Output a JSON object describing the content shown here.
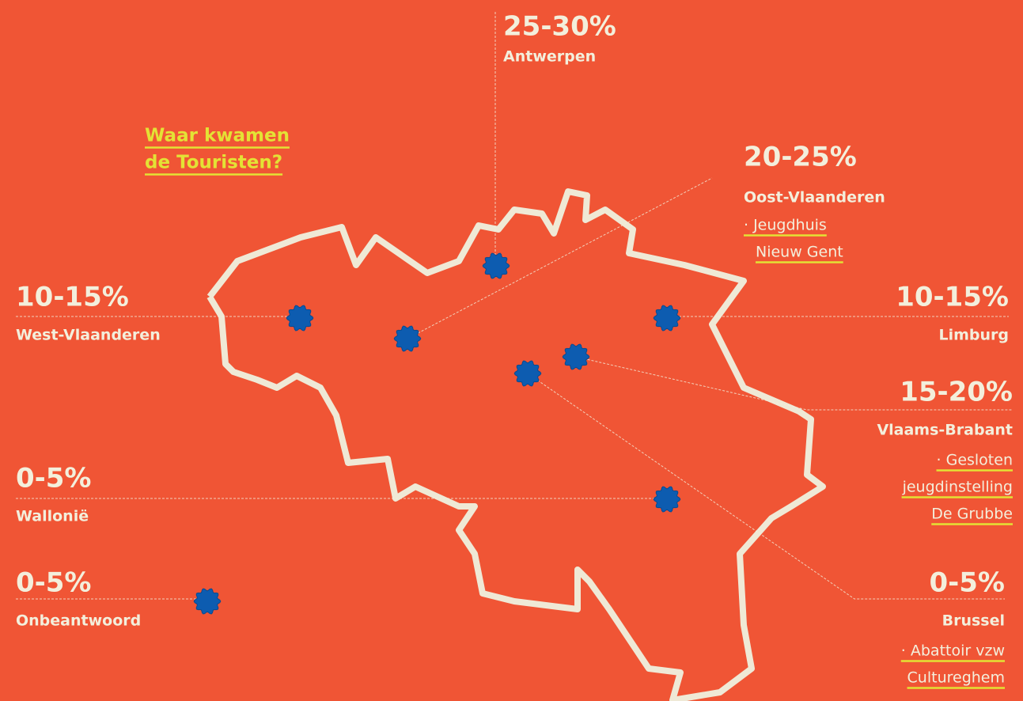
{
  "title": {
    "lines": [
      "Waar kwamen",
      "de Touristen?"
    ]
  },
  "regions": [
    {
      "range": "25-30%",
      "name": "Antwerpen"
    },
    {
      "range": "20-25%",
      "name": "Oost-Vlaanderen",
      "links": [
        "· Jeugdhuis",
        "Nieuw Gent"
      ]
    },
    {
      "range": "10-15%",
      "name": "West-Vlaanderen"
    },
    {
      "range": "10-15%",
      "name": "Limburg"
    },
    {
      "range": "15-20%",
      "name": "Vlaams-Brabant",
      "links": [
        "· Gesloten",
        "jeugdinstelling",
        "De Grubbe"
      ]
    },
    {
      "range": "0-5%",
      "name": "Wallonië"
    },
    {
      "range": "0-5%",
      "name": "Onbeantwoord"
    },
    {
      "range": "0-5%",
      "name": "Brussel",
      "links": [
        "· Abattoir vzw",
        "Cultureghem"
      ]
    }
  ]
}
